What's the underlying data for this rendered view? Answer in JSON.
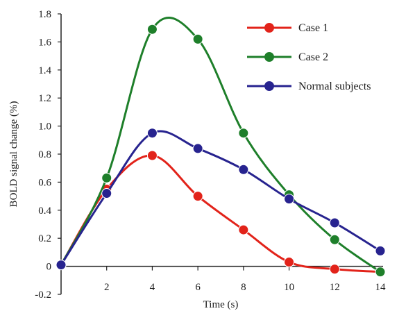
{
  "chart_data": {
    "type": "line",
    "xlabel": "Time (s)",
    "ylabel": "BOLD signal change (%)",
    "xlim": [
      0,
      14
    ],
    "ylim": [
      -0.2,
      1.8
    ],
    "xticks": [
      2,
      4,
      6,
      8,
      10,
      12,
      14
    ],
    "yticks": [
      -0.2,
      0,
      0.2,
      0.4,
      0.6,
      0.8,
      1.0,
      1.2,
      1.4,
      1.6,
      1.8
    ],
    "ytick_labels": [
      "-0.2",
      "0",
      "0.2",
      "0.4",
      "0.6",
      "0.8",
      "1.0",
      "1.2",
      "1.4",
      "1.6",
      "1.8"
    ],
    "grid": false,
    "legend_position": "top-right",
    "x": [
      0,
      2,
      4,
      6,
      8,
      10,
      12,
      14
    ],
    "series": [
      {
        "name": "Case 1",
        "color": "#e2231a",
        "values": [
          0.01,
          0.55,
          0.79,
          0.5,
          0.26,
          0.03,
          -0.02,
          -0.04
        ]
      },
      {
        "name": "Case 2",
        "color": "#1e7f2a",
        "values": [
          0.01,
          0.63,
          1.69,
          1.62,
          0.95,
          0.51,
          0.19,
          -0.04
        ]
      },
      {
        "name": "Normal subjects",
        "color": "#27238f",
        "values": [
          0.01,
          0.52,
          0.95,
          0.84,
          0.69,
          0.48,
          0.31,
          0.11
        ]
      }
    ]
  }
}
